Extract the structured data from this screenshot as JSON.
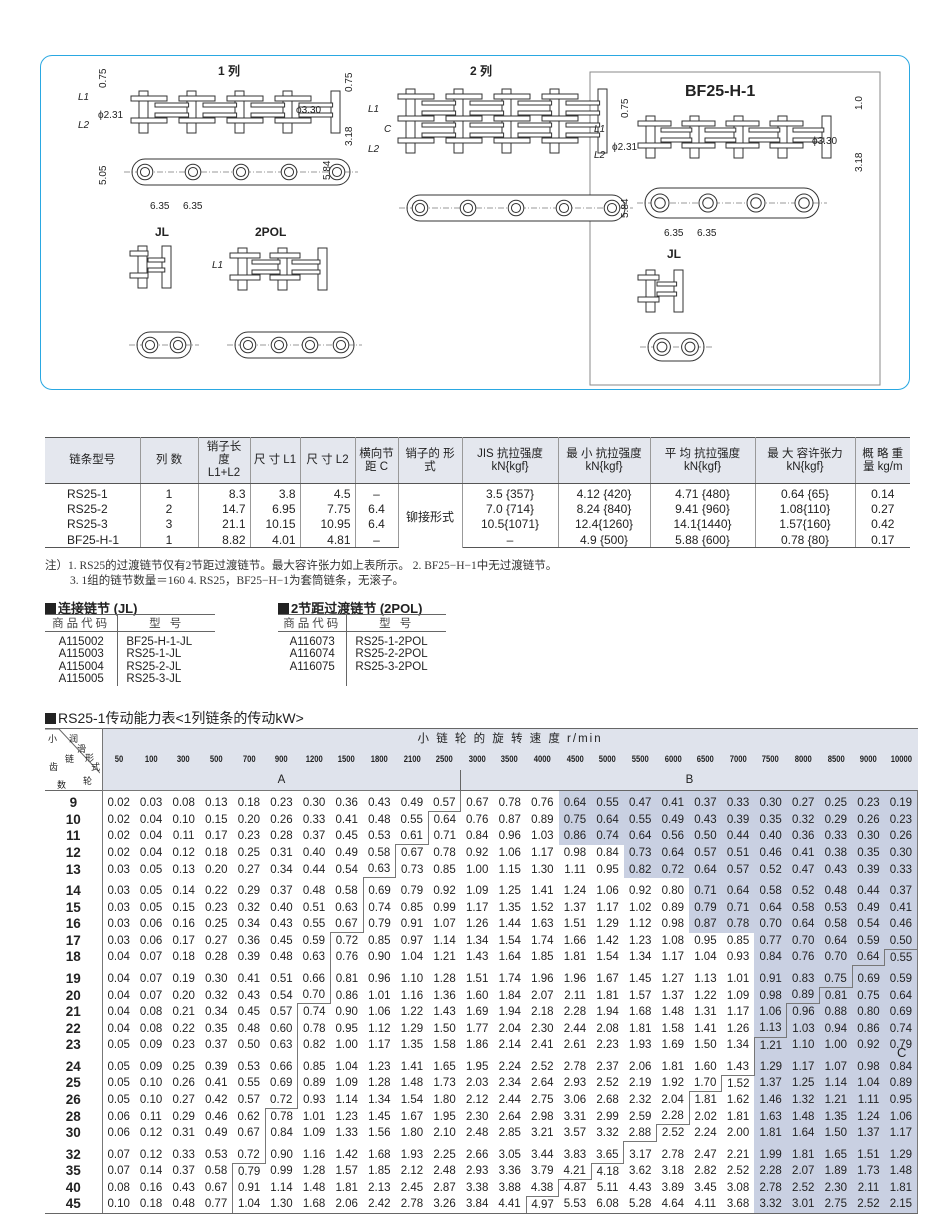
{
  "diagram": {
    "row1_title": "1  列",
    "row2_title": "2  列",
    "bf_title": "BF25-H-1",
    "jl": "JL",
    "pol": "2POL",
    "bf_jl": "JL",
    "dim_075": "0.75",
    "dim_phi231": "ϕ2.31",
    "dim_phi330": "ϕ3.30",
    "dim_318": "3.18",
    "dim_505": "5.05",
    "dim_584": "5.84",
    "dim_635": "6.35",
    "dim_10": "1.0",
    "L1": "L1",
    "L2": "L2",
    "C": "C"
  },
  "spec_table": {
    "headers": [
      "链条型号",
      "列  数",
      "销子长度 L1+L2",
      "尺  寸 L1",
      "尺  寸 L2",
      "横向节距 C",
      "销子的 形  式",
      "JIS 抗拉强度 kN{kgf}",
      "最  小 抗拉强度 kN{kgf}",
      "平  均 抗拉强度 kN{kgf}",
      "最  大 容许张力 kN{kgf}",
      "概  略 重  量 kg/m"
    ],
    "pin_type": "铆接形式",
    "rows": [
      [
        "RS25-1",
        "1",
        "8.3",
        "3.8",
        "4.5",
        "–",
        "3.5 {357}",
        "4.12 {420}",
        "4.71 {480}",
        "0.64 {65}",
        "0.14"
      ],
      [
        "RS25-2",
        "2",
        "14.7",
        "6.95",
        "7.75",
        "6.4",
        "7.0 {714}",
        "8.24 {840}",
        "9.41 {960}",
        "1.08{110}",
        "0.27"
      ],
      [
        "RS25-3",
        "3",
        "21.1",
        "10.15",
        "10.95",
        "6.4",
        "10.5{1071}",
        "12.4{1260}",
        "14.1{1440}",
        "1.57{160}",
        "0.42"
      ],
      [
        "BF25-H-1",
        "1",
        "8.82",
        "4.01",
        "4.81",
        "–",
        "–",
        "4.9  {500}",
        "5.88 {600}",
        "0.78 {80}",
        "0.17"
      ]
    ]
  },
  "notes": {
    "line1": "注）1. RS25的过渡链节仅有2节距过渡链节。最大容许张力如上表所示。  2. BF25−H−1中无过渡链节。",
    "line2": "3. 1组的链节数量＝160   4. RS25，BF25−H−1为套筒链条，无滚子。"
  },
  "jl_table": {
    "title": "连接链节 (JL)",
    "headers": [
      "商品代码",
      "型    号"
    ],
    "rows": [
      [
        "A115002",
        "BF25-H-1-JL"
      ],
      [
        "A115003",
        "RS25-1-JL"
      ],
      [
        "A115004",
        "RS25-2-JL"
      ],
      [
        "A115005",
        "RS25-3-JL"
      ]
    ]
  },
  "pol_table": {
    "title": "2节距过渡链节 (2POL)",
    "headers": [
      "商品代码",
      "型    号"
    ],
    "rows": [
      [
        "A116073",
        "RS25-1-2POL"
      ],
      [
        "A116074",
        "RS25-2-2POL"
      ],
      [
        "A116075",
        "RS25-3-2POL"
      ]
    ]
  },
  "power_table": {
    "title": "RS25-1传动能力表<1列链条的传动kW>",
    "speed_header": "小 链 轮 的 旋 转 速 度    r/min",
    "corner_left": [
      "小",
      "链",
      "轮",
      "齿",
      "数"
    ],
    "corner_right": [
      "润",
      "滑",
      "形",
      "式"
    ],
    "zone_a": "A",
    "zone_b": "B",
    "zone_c": "C",
    "speeds": [
      "50",
      "100",
      "300",
      "500",
      "700",
      "900",
      "1200",
      "1500",
      "1800",
      "2100",
      "2500",
      "3000",
      "3500",
      "4000",
      "4500",
      "5000",
      "5500",
      "6000",
      "6500",
      "7000",
      "7500",
      "8000",
      "8500",
      "9000",
      "10000"
    ],
    "rows": [
      {
        "teeth": "9",
        "b": 11,
        "c": null,
        "shade": 14,
        "v": [
          "0.02",
          "0.03",
          "0.08",
          "0.13",
          "0.18",
          "0.23",
          "0.30",
          "0.36",
          "0.43",
          "0.49",
          "0.57",
          "0.67",
          "0.78",
          "0.76",
          "0.64",
          "0.55",
          "0.47",
          "0.41",
          "0.37",
          "0.33",
          "0.30",
          "0.27",
          "0.25",
          "0.23",
          "0.19"
        ]
      },
      {
        "teeth": "10",
        "b": 10,
        "c": null,
        "shade": 14,
        "v": [
          "0.02",
          "0.04",
          "0.10",
          "0.15",
          "0.20",
          "0.26",
          "0.33",
          "0.41",
          "0.48",
          "0.55",
          "0.64",
          "0.76",
          "0.87",
          "0.89",
          "0.75",
          "0.64",
          "0.55",
          "0.49",
          "0.43",
          "0.39",
          "0.35",
          "0.32",
          "0.29",
          "0.26",
          "0.23"
        ]
      },
      {
        "teeth": "11",
        "b": 10,
        "c": null,
        "shade": 14,
        "v": [
          "0.02",
          "0.04",
          "0.11",
          "0.17",
          "0.23",
          "0.28",
          "0.37",
          "0.45",
          "0.53",
          "0.61",
          "0.71",
          "0.84",
          "0.96",
          "1.03",
          "0.86",
          "0.74",
          "0.64",
          "0.56",
          "0.50",
          "0.44",
          "0.40",
          "0.36",
          "0.33",
          "0.30",
          "0.26"
        ]
      },
      {
        "teeth": "12",
        "b": 9,
        "c": null,
        "shade": 16,
        "v": [
          "0.02",
          "0.04",
          "0.12",
          "0.18",
          "0.25",
          "0.31",
          "0.40",
          "0.49",
          "0.58",
          "0.67",
          "0.78",
          "0.92",
          "1.06",
          "1.17",
          "0.98",
          "0.84",
          "0.73",
          "0.64",
          "0.57",
          "0.51",
          "0.46",
          "0.41",
          "0.38",
          "0.35",
          "0.30"
        ]
      },
      {
        "teeth": "13",
        "b": 9,
        "c": null,
        "shade": 16,
        "v": [
          "0.03",
          "0.05",
          "0.13",
          "0.20",
          "0.27",
          "0.34",
          "0.44",
          "0.54",
          "0.63",
          "0.73",
          "0.85",
          "1.00",
          "1.15",
          "1.30",
          "1.11",
          "0.95",
          "0.82",
          "0.72",
          "0.64",
          "0.57",
          "0.52",
          "0.47",
          "0.43",
          "0.39",
          "0.33"
        ]
      },
      {
        "teeth": "14",
        "b": 8,
        "c": null,
        "shade": 18,
        "v": [
          "0.03",
          "0.05",
          "0.14",
          "0.22",
          "0.29",
          "0.37",
          "0.48",
          "0.58",
          "0.69",
          "0.79",
          "0.92",
          "1.09",
          "1.25",
          "1.41",
          "1.24",
          "1.06",
          "0.92",
          "0.80",
          "0.71",
          "0.64",
          "0.58",
          "0.52",
          "0.48",
          "0.44",
          "0.37"
        ]
      },
      {
        "teeth": "15",
        "b": 8,
        "c": null,
        "shade": 18,
        "v": [
          "0.03",
          "0.05",
          "0.15",
          "0.23",
          "0.32",
          "0.40",
          "0.51",
          "0.63",
          "0.74",
          "0.85",
          "0.99",
          "1.17",
          "1.35",
          "1.52",
          "1.37",
          "1.17",
          "1.02",
          "0.89",
          "0.79",
          "0.71",
          "0.64",
          "0.58",
          "0.53",
          "0.49",
          "0.41"
        ]
      },
      {
        "teeth": "16",
        "b": 8,
        "c": null,
        "shade": 18,
        "v": [
          "0.03",
          "0.06",
          "0.16",
          "0.25",
          "0.34",
          "0.43",
          "0.55",
          "0.67",
          "0.79",
          "0.91",
          "1.07",
          "1.26",
          "1.44",
          "1.63",
          "1.51",
          "1.29",
          "1.12",
          "0.98",
          "0.87",
          "0.78",
          "0.70",
          "0.64",
          "0.58",
          "0.54",
          "0.46"
        ]
      },
      {
        "teeth": "17",
        "b": 7,
        "c": null,
        "shade": 20,
        "v": [
          "0.03",
          "0.06",
          "0.17",
          "0.27",
          "0.36",
          "0.45",
          "0.59",
          "0.72",
          "0.85",
          "0.97",
          "1.14",
          "1.34",
          "1.54",
          "1.74",
          "1.66",
          "1.42",
          "1.23",
          "1.08",
          "0.95",
          "0.85",
          "0.77",
          "0.70",
          "0.64",
          "0.59",
          "0.50"
        ]
      },
      {
        "teeth": "18",
        "b": 7,
        "c": 24,
        "shade": 20,
        "v": [
          "0.04",
          "0.07",
          "0.18",
          "0.28",
          "0.39",
          "0.48",
          "0.63",
          "0.76",
          "0.90",
          "1.04",
          "1.21",
          "1.43",
          "1.64",
          "1.85",
          "1.81",
          "1.54",
          "1.34",
          "1.17",
          "1.04",
          "0.93",
          "0.84",
          "0.76",
          "0.70",
          "0.64",
          "0.55"
        ]
      },
      {
        "teeth": "19",
        "b": 7,
        "c": 23,
        "shade": 20,
        "v": [
          "0.04",
          "0.07",
          "0.19",
          "0.30",
          "0.41",
          "0.51",
          "0.66",
          "0.81",
          "0.96",
          "1.10",
          "1.28",
          "1.51",
          "1.74",
          "1.96",
          "1.96",
          "1.67",
          "1.45",
          "1.27",
          "1.13",
          "1.01",
          "0.91",
          "0.83",
          "0.75",
          "0.69",
          "0.59"
        ]
      },
      {
        "teeth": "20",
        "b": 7,
        "c": 22,
        "shade": 20,
        "v": [
          "0.04",
          "0.07",
          "0.20",
          "0.32",
          "0.43",
          "0.54",
          "0.70",
          "0.86",
          "1.01",
          "1.16",
          "1.36",
          "1.60",
          "1.84",
          "2.07",
          "2.11",
          "1.81",
          "1.57",
          "1.37",
          "1.22",
          "1.09",
          "0.98",
          "0.89",
          "0.81",
          "0.75",
          "0.64"
        ]
      },
      {
        "teeth": "21",
        "b": 6,
        "c": 21,
        "shade": 20,
        "v": [
          "0.04",
          "0.08",
          "0.21",
          "0.34",
          "0.45",
          "0.57",
          "0.74",
          "0.90",
          "1.06",
          "1.22",
          "1.43",
          "1.69",
          "1.94",
          "2.18",
          "2.28",
          "1.94",
          "1.68",
          "1.48",
          "1.31",
          "1.17",
          "1.06",
          "0.96",
          "0.88",
          "0.80",
          "0.69"
        ]
      },
      {
        "teeth": "22",
        "b": 6,
        "c": 21,
        "shade": 20,
        "v": [
          "0.04",
          "0.08",
          "0.22",
          "0.35",
          "0.48",
          "0.60",
          "0.78",
          "0.95",
          "1.12",
          "1.29",
          "1.50",
          "1.77",
          "2.04",
          "2.30",
          "2.44",
          "2.08",
          "1.81",
          "1.58",
          "1.41",
          "1.26",
          "1.13",
          "1.03",
          "0.94",
          "0.86",
          "0.74"
        ]
      },
      {
        "teeth": "23",
        "b": 6,
        "c": 20,
        "shade": 20,
        "v": [
          "0.05",
          "0.09",
          "0.23",
          "0.37",
          "0.50",
          "0.63",
          "0.82",
          "1.00",
          "1.17",
          "1.35",
          "1.58",
          "1.86",
          "2.14",
          "2.41",
          "2.61",
          "2.23",
          "1.93",
          "1.69",
          "1.50",
          "1.34",
          "1.21",
          "1.10",
          "1.00",
          "0.92",
          "0.79"
        ]
      },
      {
        "teeth": "24",
        "b": 6,
        "c": 20,
        "shade": 20,
        "v": [
          "0.05",
          "0.09",
          "0.25",
          "0.39",
          "0.53",
          "0.66",
          "0.85",
          "1.04",
          "1.23",
          "1.41",
          "1.65",
          "1.95",
          "2.24",
          "2.52",
          "2.78",
          "2.37",
          "2.06",
          "1.81",
          "1.60",
          "1.43",
          "1.29",
          "1.17",
          "1.07",
          "0.98",
          "0.84"
        ]
      },
      {
        "teeth": "25",
        "b": 6,
        "c": 19,
        "shade": 20,
        "v": [
          "0.05",
          "0.10",
          "0.26",
          "0.41",
          "0.55",
          "0.69",
          "0.89",
          "1.09",
          "1.28",
          "1.48",
          "1.73",
          "2.03",
          "2.34",
          "2.64",
          "2.93",
          "2.52",
          "2.19",
          "1.92",
          "1.70",
          "1.52",
          "1.37",
          "1.25",
          "1.14",
          "1.04",
          "0.89"
        ]
      },
      {
        "teeth": "26",
        "b": 6,
        "c": 18,
        "shade": 20,
        "v": [
          "0.05",
          "0.10",
          "0.27",
          "0.42",
          "0.57",
          "0.72",
          "0.93",
          "1.14",
          "1.34",
          "1.54",
          "1.80",
          "2.12",
          "2.44",
          "2.75",
          "3.06",
          "2.68",
          "2.32",
          "2.04",
          "1.81",
          "1.62",
          "1.46",
          "1.32",
          "1.21",
          "1.11",
          "0.95"
        ]
      },
      {
        "teeth": "28",
        "b": 5,
        "c": 18,
        "shade": 20,
        "v": [
          "0.06",
          "0.11",
          "0.29",
          "0.46",
          "0.62",
          "0.78",
          "1.01",
          "1.23",
          "1.45",
          "1.67",
          "1.95",
          "2.30",
          "2.64",
          "2.98",
          "3.31",
          "2.99",
          "2.59",
          "2.28",
          "2.02",
          "1.81",
          "1.63",
          "1.48",
          "1.35",
          "1.24",
          "1.06"
        ]
      },
      {
        "teeth": "30",
        "b": 5,
        "c": 17,
        "shade": 20,
        "v": [
          "0.06",
          "0.12",
          "0.31",
          "0.49",
          "0.67",
          "0.84",
          "1.09",
          "1.33",
          "1.56",
          "1.80",
          "2.10",
          "2.48",
          "2.85",
          "3.21",
          "3.57",
          "3.32",
          "2.88",
          "2.52",
          "2.24",
          "2.00",
          "1.81",
          "1.64",
          "1.50",
          "1.37",
          "1.17"
        ]
      },
      {
        "teeth": "32",
        "b": 5,
        "c": 16,
        "shade": 20,
        "v": [
          "0.07",
          "0.12",
          "0.33",
          "0.53",
          "0.72",
          "0.90",
          "1.16",
          "1.42",
          "1.68",
          "1.93",
          "2.25",
          "2.66",
          "3.05",
          "3.44",
          "3.83",
          "3.65",
          "3.17",
          "2.78",
          "2.47",
          "2.21",
          "1.99",
          "1.81",
          "1.65",
          "1.51",
          "1.29"
        ]
      },
      {
        "teeth": "35",
        "b": 4,
        "c": 15,
        "shade": 20,
        "v": [
          "0.07",
          "0.14",
          "0.37",
          "0.58",
          "0.79",
          "0.99",
          "1.28",
          "1.57",
          "1.85",
          "2.12",
          "2.48",
          "2.93",
          "3.36",
          "3.79",
          "4.21",
          "4.18",
          "3.62",
          "3.18",
          "2.82",
          "2.52",
          "2.28",
          "2.07",
          "1.89",
          "1.73",
          "1.48"
        ]
      },
      {
        "teeth": "40",
        "b": 4,
        "c": 14,
        "shade": 20,
        "v": [
          "0.08",
          "0.16",
          "0.43",
          "0.67",
          "0.91",
          "1.14",
          "1.48",
          "1.81",
          "2.13",
          "2.45",
          "2.87",
          "3.38",
          "3.88",
          "4.38",
          "4.87",
          "5.11",
          "4.43",
          "3.89",
          "3.45",
          "3.08",
          "2.78",
          "2.52",
          "2.30",
          "2.11",
          "1.81"
        ]
      },
      {
        "teeth": "45",
        "b": 4,
        "c": 13,
        "shade": 20,
        "v": [
          "0.10",
          "0.18",
          "0.48",
          "0.77",
          "1.04",
          "1.30",
          "1.68",
          "2.06",
          "2.42",
          "2.78",
          "3.26",
          "3.84",
          "4.41",
          "4.97",
          "5.53",
          "6.08",
          "5.28",
          "4.64",
          "4.11",
          "3.68",
          "3.32",
          "3.01",
          "2.75",
          "2.52",
          "2.15"
        ]
      }
    ]
  },
  "colors": {
    "frame": "#2aa8e2",
    "header_bg": "#dfe3ec",
    "shade": "#c9d0e2"
  }
}
